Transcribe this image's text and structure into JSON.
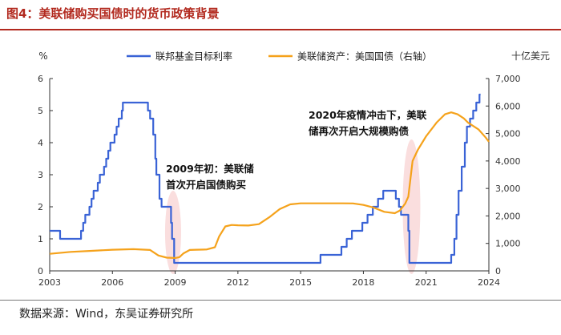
{
  "figure": {
    "title": "图4：美联储购买国债时的货币政策背景",
    "source": "数据来源：Wind，东吴证券研究所"
  },
  "chart_data": {
    "type": "line",
    "title": "",
    "xlabel": "",
    "left_axis": {
      "unit_label": "%",
      "ylim": [
        0,
        6
      ],
      "ticks": [
        "0",
        "1",
        "2",
        "3",
        "4",
        "5",
        "6"
      ]
    },
    "right_axis": {
      "unit_label": "十亿美元",
      "ylim": [
        0,
        7000
      ],
      "ticks": [
        "0",
        "1,000",
        "2,000",
        "3,000",
        "4,000",
        "5,000",
        "6,000",
        "7,000"
      ]
    },
    "x_axis": {
      "xlim": [
        2003,
        2024
      ],
      "ticks": [
        "2003",
        "2006",
        "2009",
        "2012",
        "2015",
        "2018",
        "2021",
        "2024"
      ]
    },
    "grid": false,
    "legend_position": "top",
    "series": [
      {
        "name": "联邦基金目标利率",
        "axis": "left",
        "color": "#3a63d6",
        "step": true,
        "points": [
          [
            2003.0,
            1.25
          ],
          [
            2003.5,
            1.0
          ],
          [
            2004.5,
            1.25
          ],
          [
            2004.6,
            1.5
          ],
          [
            2004.7,
            1.75
          ],
          [
            2004.9,
            2.0
          ],
          [
            2005.0,
            2.25
          ],
          [
            2005.1,
            2.5
          ],
          [
            2005.3,
            2.75
          ],
          [
            2005.4,
            3.0
          ],
          [
            2005.6,
            3.25
          ],
          [
            2005.7,
            3.5
          ],
          [
            2005.8,
            3.75
          ],
          [
            2005.9,
            4.0
          ],
          [
            2006.1,
            4.25
          ],
          [
            2006.2,
            4.5
          ],
          [
            2006.3,
            4.75
          ],
          [
            2006.45,
            5.0
          ],
          [
            2006.5,
            5.25
          ],
          [
            2007.7,
            5.0
          ],
          [
            2007.8,
            4.75
          ],
          [
            2007.95,
            4.25
          ],
          [
            2008.05,
            3.5
          ],
          [
            2008.1,
            3.0
          ],
          [
            2008.25,
            2.25
          ],
          [
            2008.35,
            2.0
          ],
          [
            2008.8,
            1.5
          ],
          [
            2008.85,
            1.0
          ],
          [
            2008.95,
            0.25
          ],
          [
            2015.95,
            0.5
          ],
          [
            2016.95,
            0.75
          ],
          [
            2017.2,
            1.0
          ],
          [
            2017.45,
            1.25
          ],
          [
            2017.95,
            1.5
          ],
          [
            2018.2,
            1.75
          ],
          [
            2018.45,
            2.0
          ],
          [
            2018.7,
            2.25
          ],
          [
            2018.95,
            2.5
          ],
          [
            2019.55,
            2.25
          ],
          [
            2019.7,
            2.0
          ],
          [
            2019.8,
            1.75
          ],
          [
            2020.15,
            1.25
          ],
          [
            2020.2,
            0.25
          ],
          [
            2022.2,
            0.5
          ],
          [
            2022.35,
            1.0
          ],
          [
            2022.45,
            1.75
          ],
          [
            2022.55,
            2.5
          ],
          [
            2022.7,
            3.25
          ],
          [
            2022.85,
            4.0
          ],
          [
            2022.95,
            4.5
          ],
          [
            2023.1,
            4.75
          ],
          [
            2023.25,
            5.0
          ],
          [
            2023.4,
            5.25
          ],
          [
            2023.55,
            5.5
          ],
          [
            2023.6,
            5.5
          ]
        ]
      },
      {
        "name": "美联储资产：美国国债（右轴）",
        "axis": "right",
        "color": "#f5a21b",
        "step": false,
        "points": [
          [
            2003.0,
            620
          ],
          [
            2004.0,
            690
          ],
          [
            2005.0,
            730
          ],
          [
            2006.0,
            770
          ],
          [
            2007.0,
            790
          ],
          [
            2007.8,
            760
          ],
          [
            2008.2,
            560
          ],
          [
            2008.6,
            480
          ],
          [
            2009.0,
            470
          ],
          [
            2009.2,
            500
          ],
          [
            2009.4,
            640
          ],
          [
            2009.7,
            760
          ],
          [
            2010.0,
            770
          ],
          [
            2010.5,
            780
          ],
          [
            2010.9,
            860
          ],
          [
            2011.1,
            1250
          ],
          [
            2011.4,
            1620
          ],
          [
            2011.7,
            1670
          ],
          [
            2012.0,
            1660
          ],
          [
            2012.5,
            1650
          ],
          [
            2013.0,
            1700
          ],
          [
            2013.5,
            1950
          ],
          [
            2014.0,
            2250
          ],
          [
            2014.5,
            2420
          ],
          [
            2015.0,
            2460
          ],
          [
            2016.0,
            2460
          ],
          [
            2017.0,
            2460
          ],
          [
            2017.5,
            2455
          ],
          [
            2018.0,
            2400
          ],
          [
            2018.5,
            2300
          ],
          [
            2019.0,
            2150
          ],
          [
            2019.5,
            2100
          ],
          [
            2019.75,
            2200
          ],
          [
            2020.0,
            2450
          ],
          [
            2020.15,
            2700
          ],
          [
            2020.35,
            4000
          ],
          [
            2020.6,
            4400
          ],
          [
            2021.0,
            4900
          ],
          [
            2021.5,
            5400
          ],
          [
            2021.9,
            5700
          ],
          [
            2022.2,
            5770
          ],
          [
            2022.5,
            5700
          ],
          [
            2022.8,
            5550
          ],
          [
            2023.0,
            5400
          ],
          [
            2023.5,
            5150
          ],
          [
            2023.85,
            4850
          ],
          [
            2024.0,
            4700
          ]
        ]
      }
    ],
    "annotations": [
      {
        "text_lines": [
          "2009年初：美联储",
          "首次开启国债购买"
        ],
        "highlight_x": 2008.9
      },
      {
        "text_lines": [
          "2020年疫情冲击下，美联",
          "储再次开启大规模购债"
        ],
        "highlight_x": 2020.3
      }
    ]
  }
}
